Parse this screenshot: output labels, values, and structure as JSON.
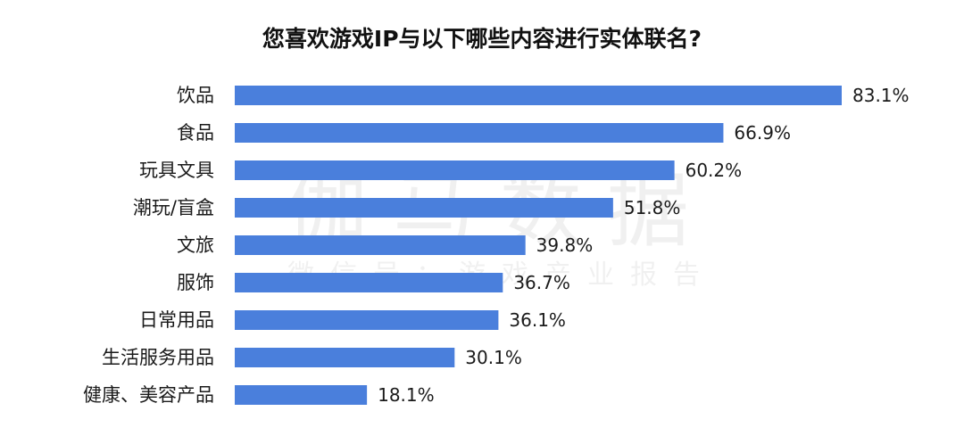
{
  "watermark": {
    "main": "伽马数据",
    "sub": "微信号：游戏产业报告"
  },
  "colors": {
    "bar": "#4a7fdc",
    "text": "#1a1a1a"
  },
  "chart_data": {
    "type": "bar",
    "orientation": "horizontal",
    "title": "您喜欢游戏IP与以下哪些内容进行实体联名?",
    "categories": [
      "饮品",
      "食品",
      "玩具文具",
      "潮玩/盲盒",
      "文旅",
      "服饰",
      "日常用品",
      "生活服务用品",
      "健康、美容产品"
    ],
    "values": [
      83.1,
      66.9,
      60.2,
      51.8,
      39.8,
      36.7,
      36.1,
      30.1,
      18.1
    ],
    "value_labels": [
      "83.1%",
      "66.9%",
      "60.2%",
      "51.8%",
      "39.8%",
      "36.7%",
      "36.1%",
      "30.1%",
      "18.1%"
    ],
    "unit": "%",
    "xlim": [
      0,
      100
    ],
    "grid": false,
    "legend": "none"
  }
}
